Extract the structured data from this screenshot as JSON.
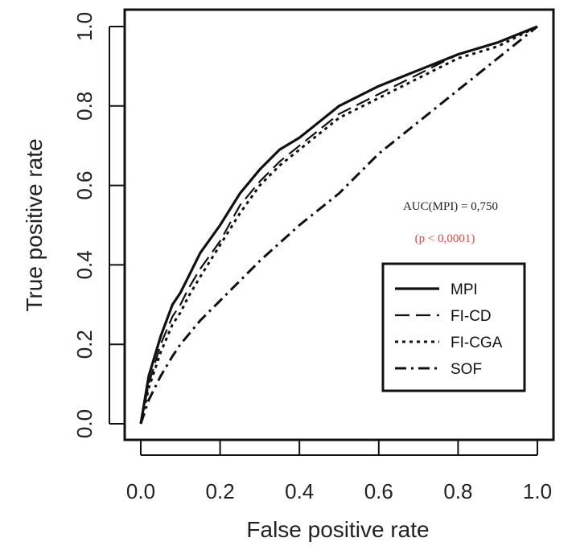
{
  "chart_data": {
    "type": "line",
    "xlabel": "False positive rate",
    "ylabel": "True positive rate",
    "xlim": [
      0,
      1
    ],
    "ylim": [
      0,
      1
    ],
    "xticks": [
      "0.0",
      "0.2",
      "0.4",
      "0.6",
      "0.8",
      "1.0"
    ],
    "yticks": [
      "0.0",
      "0.2",
      "0.4",
      "0.6",
      "0.8",
      "1.0"
    ],
    "grid": false,
    "legend_position": "bottom-right",
    "annotation": {
      "auc": "AUC(MPI) = 0,750",
      "p": "(p < 0,0001)",
      "p_color": "#e8463a"
    },
    "series": [
      {
        "name": "MPI",
        "x": [
          0,
          0.02,
          0.05,
          0.08,
          0.1,
          0.12,
          0.15,
          0.2,
          0.25,
          0.3,
          0.35,
          0.4,
          0.5,
          0.6,
          0.7,
          0.8,
          0.9,
          1.0
        ],
        "y": [
          0,
          0.12,
          0.22,
          0.3,
          0.33,
          0.37,
          0.43,
          0.5,
          0.58,
          0.64,
          0.69,
          0.72,
          0.8,
          0.85,
          0.89,
          0.93,
          0.96,
          1.0
        ]
      },
      {
        "name": "FI-CD",
        "x": [
          0,
          0.02,
          0.05,
          0.08,
          0.1,
          0.12,
          0.15,
          0.2,
          0.25,
          0.3,
          0.35,
          0.4,
          0.5,
          0.6,
          0.7,
          0.8,
          0.9,
          1.0
        ],
        "y": [
          0,
          0.1,
          0.2,
          0.27,
          0.3,
          0.34,
          0.39,
          0.46,
          0.55,
          0.61,
          0.66,
          0.7,
          0.78,
          0.83,
          0.88,
          0.93,
          0.96,
          1.0
        ]
      },
      {
        "name": "FI-CGA",
        "x": [
          0,
          0.02,
          0.05,
          0.08,
          0.1,
          0.12,
          0.15,
          0.2,
          0.25,
          0.3,
          0.35,
          0.4,
          0.5,
          0.6,
          0.7,
          0.8,
          0.9,
          1.0
        ],
        "y": [
          0,
          0.09,
          0.18,
          0.25,
          0.28,
          0.32,
          0.37,
          0.45,
          0.53,
          0.6,
          0.65,
          0.69,
          0.77,
          0.82,
          0.87,
          0.92,
          0.95,
          1.0
        ]
      },
      {
        "name": "SOF",
        "x": [
          0,
          0.02,
          0.05,
          0.08,
          0.1,
          0.15,
          0.2,
          0.25,
          0.3,
          0.4,
          0.5,
          0.6,
          0.7,
          0.8,
          0.9,
          1.0
        ],
        "y": [
          0,
          0.06,
          0.12,
          0.17,
          0.2,
          0.26,
          0.31,
          0.36,
          0.41,
          0.5,
          0.58,
          0.68,
          0.76,
          0.84,
          0.92,
          1.0
        ]
      }
    ]
  }
}
